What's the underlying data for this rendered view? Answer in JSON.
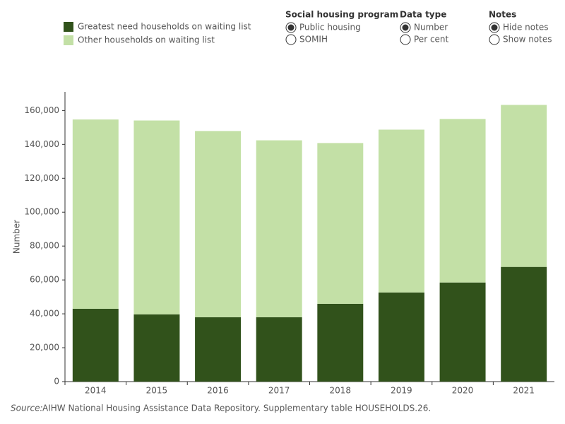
{
  "chart_data": {
    "type": "stacked_bar",
    "y_label": "Number",
    "categories": [
      "2014",
      "2015",
      "2016",
      "2017",
      "2018",
      "2019",
      "2020",
      "2021"
    ],
    "series": [
      {
        "name": "Greatest need households on waiting list",
        "color": "#31521b",
        "values": [
          43000,
          39700,
          38000,
          38000,
          45900,
          52600,
          58500,
          67700
        ]
      },
      {
        "name": "Other households on waiting list",
        "color": "#c3e0a6",
        "values": [
          111700,
          114400,
          109900,
          104400,
          94900,
          96100,
          96500,
          95600
        ]
      }
    ],
    "ylim": [
      0,
      171000
    ],
    "yticks": [
      0,
      {
        "value": 20000,
        "label": "20,000"
      },
      {
        "value": 40000,
        "label": "40,000"
      },
      {
        "value": 60000,
        "label": "60,000"
      },
      {
        "value": 80000,
        "label": "80,000"
      },
      {
        "value": 100000,
        "label": "100,000"
      },
      {
        "value": 120000,
        "label": "120,000"
      },
      {
        "value": 140000,
        "label": "140,000"
      },
      {
        "value": 160000,
        "label": "160,000"
      }
    ],
    "grid": false
  },
  "controls": [
    {
      "title": "Social housing program",
      "options": [
        "Public housing",
        "SOMIH"
      ],
      "selected": 0
    },
    {
      "title": "Data type",
      "options": [
        "Number",
        "Per cent"
      ],
      "selected": 0
    },
    {
      "title": "Notes",
      "options": [
        "Hide notes",
        "Show notes"
      ],
      "selected": 0
    }
  ],
  "source": {
    "label": "Source:",
    "text": "AIHW National Housing Assistance Data Repository. Supplementary table HOUSEHOLDS.26."
  }
}
